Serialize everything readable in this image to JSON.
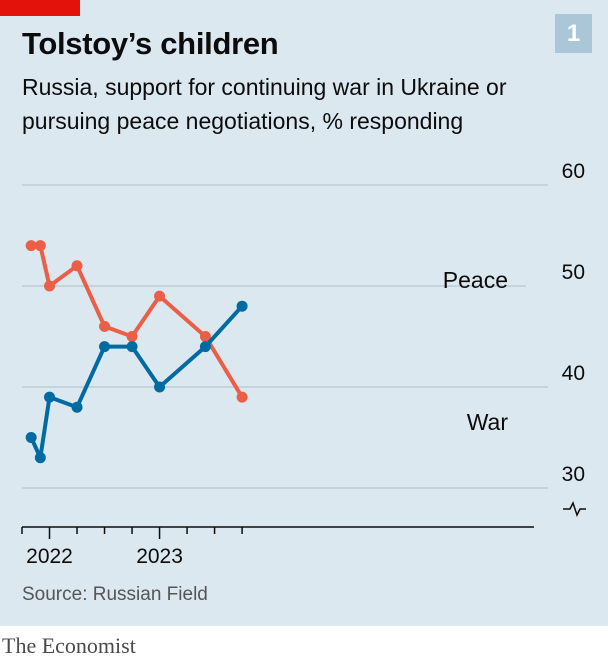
{
  "header": {
    "title": "Tolstoy’s children",
    "chart_number": "1",
    "subtitle": "Russia, support for continuing war in Ukraine or pursuing peace negotiations, % responding"
  },
  "footer": {
    "source": "Source: Russian Field",
    "brand": "The Economist"
  },
  "colors": {
    "background": "#dbe8f0",
    "brand_red": "#e3120b",
    "peace": "#006ba2",
    "war": "#eb5e47",
    "grid": "#b7c6cf"
  },
  "chart_data": {
    "type": "line",
    "x": [
      "2021-11",
      "2021-12",
      "2022-01",
      "2022-04",
      "2022-07",
      "2022-10",
      "2023-01",
      "2023-06",
      "2023-10"
    ],
    "series": [
      {
        "name": "Peace",
        "values": [
          35,
          33,
          39,
          38,
          44,
          44,
          40,
          44,
          48
        ]
      },
      {
        "name": "War",
        "values": [
          54,
          54,
          50,
          52,
          46,
          45,
          49,
          45,
          39
        ]
      }
    ],
    "ylim": [
      30,
      60
    ],
    "yticks": [
      30,
      40,
      50,
      60
    ],
    "xtick_labels": [
      "2022",
      "2023"
    ],
    "y_axis_broken": true,
    "grid": true
  }
}
